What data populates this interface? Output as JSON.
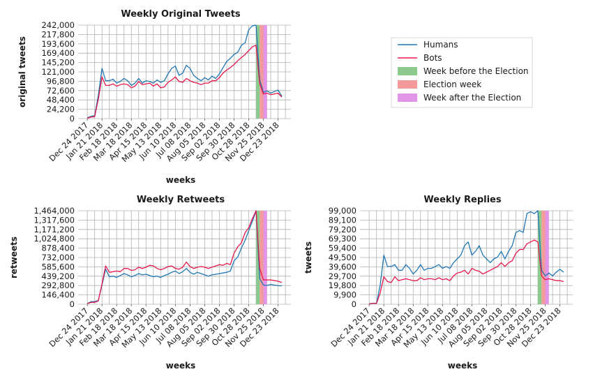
{
  "figure": {
    "colors": {
      "humans": "#1f77b4",
      "bots": "#e8174b",
      "week_before": "#8cc98c",
      "election_week": "#f49a9a",
      "week_after": "#e095e6"
    },
    "legend": {
      "entries": [
        "Humans",
        "Bots",
        "Week before the Election",
        "Election week",
        "Week after the Election"
      ]
    }
  },
  "chart_data": [
    {
      "type": "line",
      "title": "Weekly Original Tweets",
      "xlabel": "weeks",
      "ylabel": "original tweets",
      "ylim": [
        0,
        242000
      ],
      "yticks": [
        "0",
        "24,200",
        "48,400",
        "72,600",
        "96,800",
        "121,000",
        "145,200",
        "169,400",
        "193,600",
        "217,800",
        "242,000"
      ],
      "xticks": [
        "Dec 24 2017",
        "Jan 21 2018",
        "Feb 18 2018",
        "Mar 18 2018",
        "Apr 15 2018",
        "May 13 2018",
        "Jun 10 2018",
        "Jul 08 2018",
        "Aug 05 2018",
        "Sep 02 2018",
        "Sep 30 2018",
        "Oct 28 2018",
        "Nov 25 2018",
        "Dec 23 2018"
      ],
      "grid": true,
      "election_bands": {
        "week_before": [
          46,
          47
        ],
        "election_week": [
          47,
          48
        ],
        "week_after": [
          48,
          49
        ]
      },
      "series": [
        {
          "name": "Humans",
          "values": [
            2000,
            6000,
            8000,
            60000,
            130000,
            98000,
            98000,
            102000,
            92000,
            96000,
            104000,
            98000,
            86000,
            92000,
            104000,
            92000,
            98000,
            96000,
            92000,
            100000,
            94000,
            98000,
            116000,
            130000,
            136000,
            112000,
            118000,
            138000,
            130000,
            112000,
            104000,
            98000,
            106000,
            100000,
            110000,
            104000,
            116000,
            132000,
            148000,
            156000,
            166000,
            172000,
            190000,
            196000,
            230000,
            240000,
            242000,
            100000,
            68000,
            72000,
            66000,
            70000,
            74000,
            58000
          ]
        },
        {
          "name": "Bots",
          "values": [
            1000,
            4000,
            5000,
            50000,
            108000,
            86000,
            86000,
            90000,
            84000,
            88000,
            90000,
            88000,
            80000,
            84000,
            96000,
            88000,
            90000,
            92000,
            84000,
            90000,
            80000,
            82000,
            94000,
            100000,
            108000,
            96000,
            94000,
            104000,
            98000,
            94000,
            92000,
            88000,
            92000,
            92000,
            98000,
            98000,
            106000,
            118000,
            126000,
            132000,
            140000,
            150000,
            158000,
            166000,
            176000,
            186000,
            190000,
            90000,
            64000,
            66000,
            62000,
            64000,
            66000,
            56000
          ]
        }
      ]
    },
    {
      "type": "line",
      "title": "Weekly Retweets",
      "xlabel": "weeks",
      "ylabel": "retweets",
      "ylim": [
        0,
        1464000
      ],
      "yticks": [
        "0",
        "146,400",
        "292,800",
        "439,200",
        "585,600",
        "732,000",
        "878,400",
        "1,024,800",
        "1,171,200",
        "1,317,600",
        "1,464,000"
      ],
      "xticks": [
        "Dec 24 2017",
        "Jan 21 2018",
        "Feb 18 2018",
        "Mar 18 2018",
        "Apr 15 2018",
        "May 13 2018",
        "Jun 10 2018",
        "Jul 08 2018",
        "Aug 05 2018",
        "Sep 02 2018",
        "Sep 30 2018",
        "Oct 28 2018",
        "Nov 25 2018",
        "Dec 23 2018"
      ],
      "grid": true,
      "election_bands": {
        "week_before": [
          46,
          47
        ],
        "election_week": [
          47,
          48
        ],
        "week_after": [
          48,
          49
        ]
      },
      "series": [
        {
          "name": "Humans",
          "values": [
            10000,
            40000,
            40000,
            60000,
            300000,
            550000,
            430000,
            440000,
            420000,
            450000,
            480000,
            460000,
            430000,
            450000,
            480000,
            460000,
            470000,
            450000,
            430000,
            440000,
            420000,
            450000,
            470000,
            500000,
            520000,
            480000,
            510000,
            560000,
            500000,
            470000,
            500000,
            480000,
            460000,
            440000,
            460000,
            470000,
            480000,
            490000,
            500000,
            520000,
            680000,
            740000,
            880000,
            1000000,
            1150000,
            1300000,
            1464000,
            400000,
            300000,
            295000,
            310000,
            300000,
            290000,
            290000
          ]
        },
        {
          "name": "Bots",
          "values": [
            8000,
            30000,
            30000,
            50000,
            320000,
            600000,
            500000,
            510000,
            520000,
            510000,
            560000,
            560000,
            530000,
            540000,
            580000,
            560000,
            580000,
            610000,
            600000,
            560000,
            540000,
            560000,
            590000,
            600000,
            560000,
            550000,
            580000,
            660000,
            590000,
            560000,
            580000,
            590000,
            580000,
            560000,
            580000,
            600000,
            620000,
            610000,
            640000,
            620000,
            800000,
            900000,
            960000,
            1120000,
            1200000,
            1340000,
            1464000,
            560000,
            380000,
            380000,
            380000,
            370000,
            360000,
            340000
          ]
        }
      ]
    },
    {
      "type": "line",
      "title": "Weekly Replies",
      "xlabel": "weeks",
      "ylabel": "tweets",
      "ylim": [
        0,
        99000
      ],
      "yticks": [
        "0",
        "9,900",
        "19,800",
        "29,700",
        "39,600",
        "49,500",
        "59,400",
        "69,300",
        "79,200",
        "89,100",
        "99,000"
      ],
      "xticks": [
        "Dec 24 2017",
        "Jan 21 2018",
        "Feb 18 2018",
        "Mar 18 2018",
        "Apr 15 2018",
        "May 13 2018",
        "Jun 10 2018",
        "Jul 08 2018",
        "Aug 05 2018",
        "Sep 02 2018",
        "Sep 30 2018",
        "Oct 28 2018",
        "Nov 25 2018",
        "Dec 23 2018"
      ],
      "grid": true,
      "election_bands": {
        "week_before": [
          46,
          47
        ],
        "election_week": [
          47,
          48
        ],
        "week_after": [
          48,
          49
        ]
      },
      "series": [
        {
          "name": "Humans",
          "values": [
            500,
            1000,
            1000,
            20000,
            52000,
            40000,
            40000,
            42000,
            36000,
            36000,
            42000,
            38000,
            32000,
            36000,
            42000,
            36000,
            38000,
            38000,
            40000,
            42000,
            38000,
            40000,
            38000,
            44000,
            48000,
            52000,
            62000,
            66000,
            52000,
            56000,
            62000,
            52000,
            48000,
            44000,
            48000,
            50000,
            56000,
            48000,
            56000,
            62000,
            76000,
            78000,
            76000,
            96000,
            98000,
            96000,
            99000,
            36000,
            30000,
            33000,
            30000,
            34000,
            37000,
            34000
          ]
        },
        {
          "name": "Bots",
          "values": [
            300,
            800,
            800,
            12000,
            29000,
            24000,
            23000,
            29000,
            25000,
            26000,
            27000,
            26000,
            25000,
            25000,
            28000,
            26000,
            27000,
            27000,
            26000,
            28000,
            26000,
            27000,
            25000,
            30000,
            33000,
            34000,
            36000,
            32000,
            38000,
            36000,
            35000,
            32000,
            34000,
            36000,
            38000,
            40000,
            44000,
            40000,
            44000,
            46000,
            54000,
            58000,
            58000,
            64000,
            66000,
            68000,
            66000,
            30000,
            26000,
            27000,
            26000,
            25000,
            25000,
            24000
          ]
        }
      ]
    }
  ]
}
